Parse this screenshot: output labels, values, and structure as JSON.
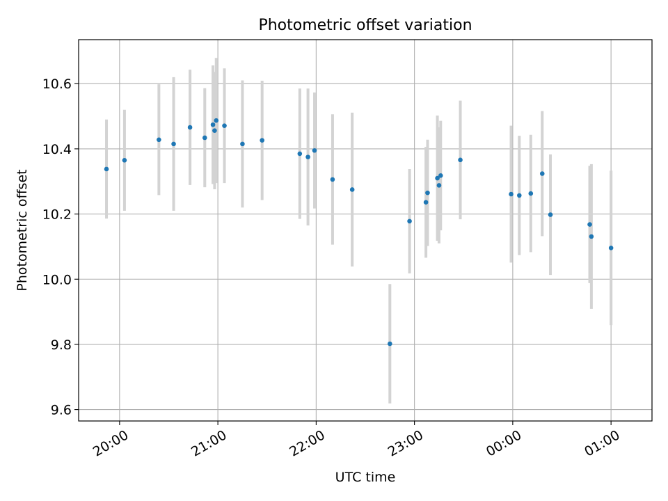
{
  "chart_data": {
    "type": "scatter",
    "title": "Photometric offset variation",
    "xlabel": "UTC time",
    "ylabel": "Photometric offset",
    "xlim": [
      "19:35",
      "01:25"
    ],
    "ylim": [
      9.565,
      10.735
    ],
    "x_ticks": [
      "20:00",
      "21:00",
      "22:00",
      "23:00",
      "00:00",
      "01:00"
    ],
    "y_ticks": [
      9.6,
      9.8,
      10.0,
      10.2,
      10.4,
      10.6
    ],
    "y_tick_labels": [
      "9.6",
      "9.8",
      "10.0",
      "10.2",
      "10.4",
      "10.6"
    ],
    "grid": true,
    "marker_color": "#1f77b4",
    "errorbar_color": "#d3d3d3",
    "points": [
      {
        "x": "19:52",
        "y": 10.338,
        "yerr": 0.152
      },
      {
        "x": "20:03",
        "y": 10.365,
        "yerr": 0.155
      },
      {
        "x": "20:24",
        "y": 10.428,
        "yerr": 0.17
      },
      {
        "x": "20:33",
        "y": 10.415,
        "yerr": 0.205
      },
      {
        "x": "20:43",
        "y": 10.466,
        "yerr": 0.177
      },
      {
        "x": "20:52",
        "y": 10.434,
        "yerr": 0.152
      },
      {
        "x": "20:57",
        "y": 10.474,
        "yerr": 0.182
      },
      {
        "x": "20:58",
        "y": 10.456,
        "yerr": 0.18
      },
      {
        "x": "20:59",
        "y": 10.487,
        "yerr": 0.192
      },
      {
        "x": "21:04",
        "y": 10.471,
        "yerr": 0.176
      },
      {
        "x": "21:15",
        "y": 10.415,
        "yerr": 0.195
      },
      {
        "x": "21:27",
        "y": 10.426,
        "yerr": 0.183
      },
      {
        "x": "21:50",
        "y": 10.385,
        "yerr": 0.2
      },
      {
        "x": "21:55",
        "y": 10.375,
        "yerr": 0.21
      },
      {
        "x": "21:59",
        "y": 10.395,
        "yerr": 0.178
      },
      {
        "x": "22:10",
        "y": 10.306,
        "yerr": 0.2
      },
      {
        "x": "22:22",
        "y": 10.275,
        "yerr": 0.236
      },
      {
        "x": "22:45",
        "y": 9.802,
        "yerr": 0.183
      },
      {
        "x": "22:57",
        "y": 10.178,
        "yerr": 0.16
      },
      {
        "x": "23:07",
        "y": 10.236,
        "yerr": 0.17
      },
      {
        "x": "23:08",
        "y": 10.265,
        "yerr": 0.163
      },
      {
        "x": "23:14",
        "y": 10.31,
        "yerr": 0.192
      },
      {
        "x": "23:15",
        "y": 10.288,
        "yerr": 0.178
      },
      {
        "x": "23:16",
        "y": 10.318,
        "yerr": 0.168
      },
      {
        "x": "23:28",
        "y": 10.366,
        "yerr": 0.182
      },
      {
        "x": "23:59",
        "y": 10.261,
        "yerr": 0.21
      },
      {
        "x": "00:04",
        "y": 10.257,
        "yerr": 0.183
      },
      {
        "x": "00:11",
        "y": 10.263,
        "yerr": 0.18
      },
      {
        "x": "00:18",
        "y": 10.324,
        "yerr": 0.192
      },
      {
        "x": "00:23",
        "y": 10.198,
        "yerr": 0.185
      },
      {
        "x": "00:47",
        "y": 10.168,
        "yerr": 0.18
      },
      {
        "x": "00:48",
        "y": 10.131,
        "yerr": 0.222
      },
      {
        "x": "01:00",
        "y": 10.096,
        "yerr": 0.237
      }
    ]
  }
}
